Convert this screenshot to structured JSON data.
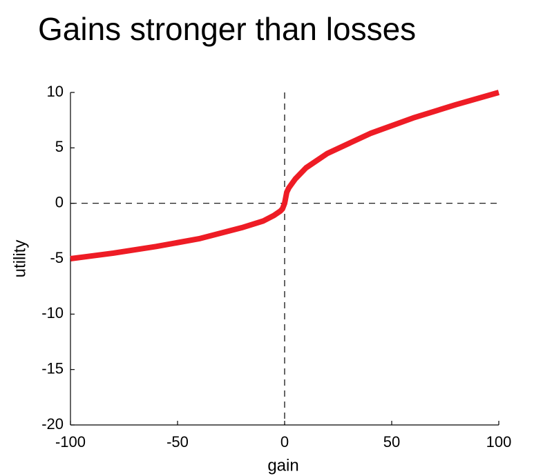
{
  "chart_data": {
    "type": "line",
    "title": "Gains stronger than losses",
    "x_label": "gain",
    "y_label": "utility",
    "x": [
      -100,
      -80,
      -60,
      -40,
      -20,
      -10,
      -5,
      -2,
      -1,
      0,
      1,
      2,
      5,
      10,
      20,
      40,
      60,
      80,
      100
    ],
    "series": [
      {
        "color": "#ee1c25",
        "values": [
          -5,
          -4.5,
          -3.9,
          -3.2,
          -2.2,
          -1.6,
          -1.1,
          -0.7,
          -0.5,
          0,
          1,
          1.4,
          2.2,
          3.2,
          4.5,
          6.3,
          7.7,
          8.9,
          10
        ]
      }
    ],
    "xlim": [
      -100,
      100
    ],
    "xticks": [
      -100,
      -50,
      0,
      50,
      100
    ],
    "ylim": [
      -20,
      10
    ],
    "yticks": [
      -20,
      -15,
      -10,
      -5,
      0,
      5,
      10
    ],
    "hlines": [
      0
    ],
    "vlines": [
      0
    ]
  }
}
